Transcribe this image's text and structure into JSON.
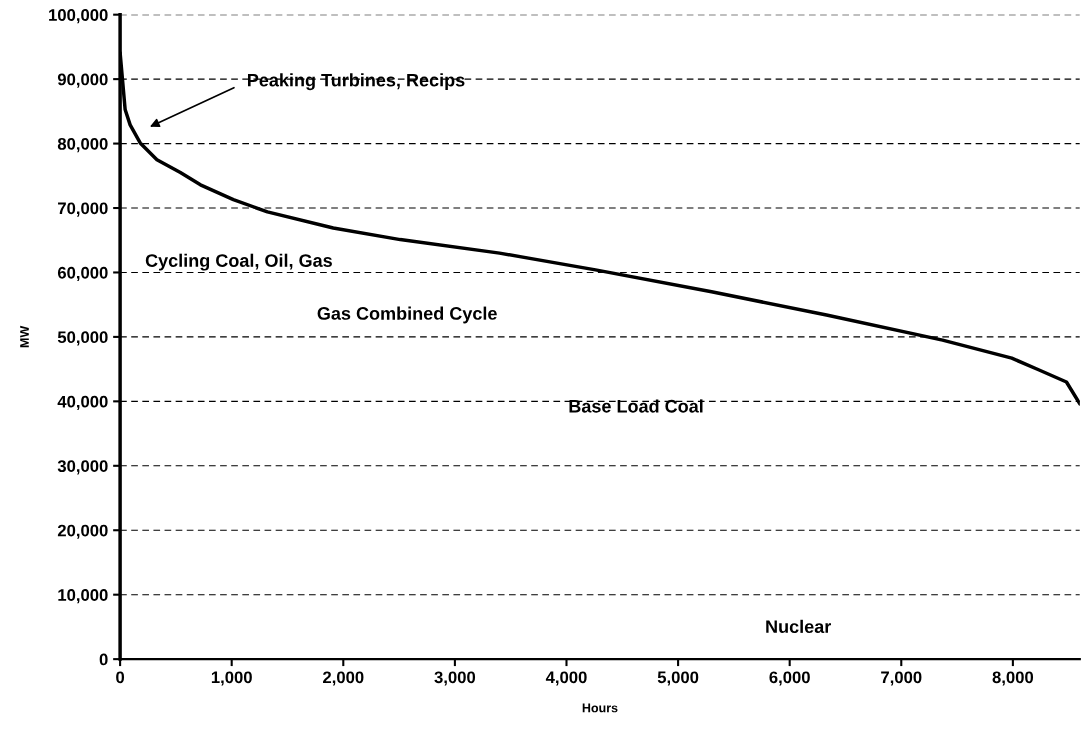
{
  "chart_data": {
    "type": "line",
    "xlabel": "Hours",
    "ylabel": "MW",
    "x": [
      0,
      45,
      90,
      180,
      330,
      540,
      720,
      1015,
      1320,
      1910,
      2510,
      3400,
      4260,
      5300,
      6330,
      7370,
      7990,
      8230,
      8480,
      8600
    ],
    "series": [
      {
        "color": "#000000",
        "values": [
          94100,
          85300,
          82900,
          80100,
          77500,
          75500,
          73600,
          71300,
          69400,
          66900,
          65100,
          63000,
          60400,
          57000,
          53400,
          49500,
          46700,
          44900,
          43000,
          39600
        ]
      }
    ],
    "xlim": [
      0,
      8600
    ],
    "xticks": [
      0,
      {
        "value": 1000,
        "label": "1,000"
      },
      {
        "value": 2000,
        "label": "2,000"
      },
      {
        "value": 3000,
        "label": "3,000"
      },
      {
        "value": 4000,
        "label": "4,000"
      },
      {
        "value": 5000,
        "label": "5,000"
      },
      {
        "value": 6000,
        "label": "6,000"
      },
      {
        "value": 7000,
        "label": "7,000"
      },
      {
        "value": 8000,
        "label": "8,000"
      }
    ],
    "ylim": [
      0,
      100000
    ],
    "yticks": [
      0,
      {
        "value": 10000,
        "label": "10,000"
      },
      {
        "value": 20000,
        "label": "20,000"
      },
      {
        "value": 30000,
        "label": "30,000"
      },
      {
        "value": 40000,
        "label": "40,000"
      },
      {
        "value": 50000,
        "label": "50,000"
      },
      {
        "value": 60000,
        "label": "60,000"
      },
      {
        "value": 70000,
        "label": "70,000"
      },
      {
        "value": 80000,
        "label": "80,000"
      },
      {
        "value": 90000,
        "label": "90,000"
      },
      {
        "value": 100000,
        "label": "100,000"
      }
    ],
    "grid": "y",
    "marker": "none",
    "line_style": "solid",
    "annotations": [
      "Peaking Turbines, Recips",
      "Cycling Coal, Oil, Gas",
      "Gas Combined Cycle",
      "Base Load Coal",
      "Nuclear"
    ]
  }
}
